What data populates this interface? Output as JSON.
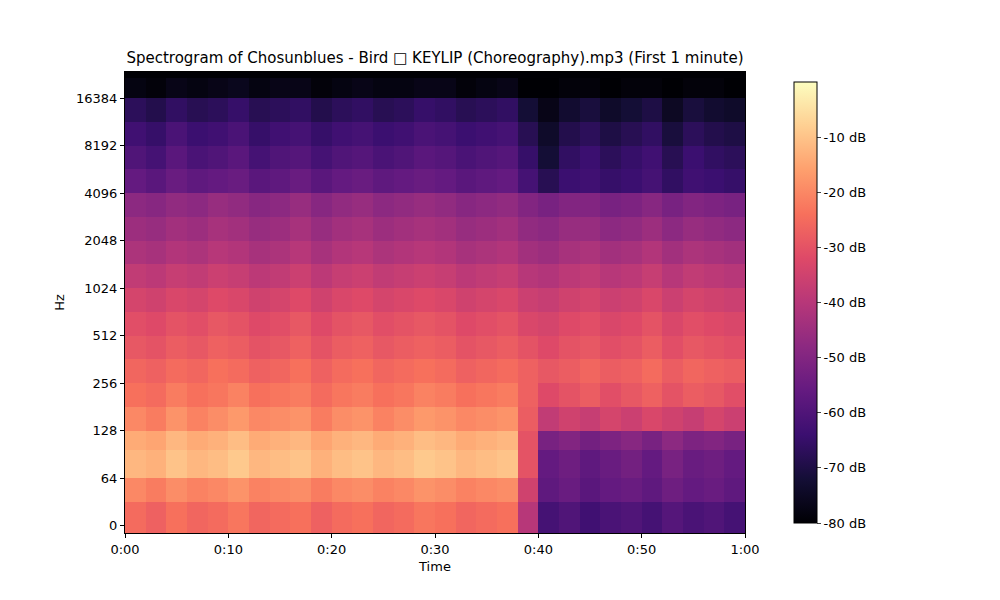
{
  "chart_data": {
    "type": "heatmap",
    "title": "Spectrogram of Chosunblues - Bird □ KEYLIP (Choreography).mp3 (First 1 minute)",
    "xlabel": "Time",
    "ylabel": "Hz",
    "log": "y",
    "grid": false,
    "xlim": [
      0,
      60
    ],
    "xticks": [
      {
        "value": 0,
        "label": "0:00"
      },
      {
        "value": 10,
        "label": "0:10"
      },
      {
        "value": 20,
        "label": "0:20"
      },
      {
        "value": 30,
        "label": "0:30"
      },
      {
        "value": 40,
        "label": "0:40"
      },
      {
        "value": 50,
        "label": "0:50"
      },
      {
        "value": 60,
        "label": "1:00"
      }
    ],
    "ylim": [
      -10,
      24000
    ],
    "yticks": [
      0,
      64,
      128,
      256,
      512,
      1024,
      2048,
      4096,
      8192,
      16384
    ],
    "x": [
      0,
      2,
      4,
      6,
      8,
      10,
      12,
      14,
      16,
      18,
      20,
      22,
      24,
      26,
      28,
      30,
      32,
      34,
      36,
      38,
      40,
      42,
      44,
      46,
      48,
      50,
      52,
      54,
      56,
      58,
      60
    ],
    "y": [
      -10,
      32,
      64,
      96,
      128,
      181,
      256,
      362,
      512,
      724,
      1024,
      1448,
      2048,
      2896,
      4096,
      5793,
      8192,
      11585,
      16384,
      22050,
      24000
    ],
    "cells": [
      [
        -25,
        -27,
        -24,
        -26,
        -25,
        -23,
        -26,
        -25,
        -24,
        -27,
        -25,
        -24,
        -26,
        -25,
        -23,
        -24,
        -26,
        -25,
        -24,
        -40,
        -62,
        -60,
        -63,
        -61,
        -60,
        -62,
        -59,
        -61,
        -60,
        -62
      ],
      [
        -20,
        -22,
        -19,
        -21,
        -20,
        -18,
        -21,
        -20,
        -19,
        -22,
        -20,
        -19,
        -21,
        -20,
        -18,
        -19,
        -21,
        -20,
        -19,
        -35,
        -57,
        -55,
        -58,
        -56,
        -55,
        -57,
        -54,
        -56,
        -55,
        -57
      ],
      [
        -12,
        -13,
        -10,
        -12,
        -11,
        -9,
        -12,
        -11,
        -10,
        -13,
        -11,
        -10,
        -12,
        -11,
        -9,
        -10,
        -12,
        -11,
        -10,
        -30,
        -56,
        -54,
        -57,
        -55,
        -53,
        -56,
        -52,
        -55,
        -54,
        -56
      ],
      [
        -14,
        -15,
        -12,
        -14,
        -13,
        -11,
        -14,
        -13,
        -12,
        -15,
        -13,
        -12,
        -14,
        -13,
        -11,
        -12,
        -14,
        -13,
        -12,
        -30,
        -52,
        -50,
        -53,
        -51,
        -49,
        -52,
        -48,
        -51,
        -50,
        -52
      ],
      [
        -20,
        -22,
        -18,
        -21,
        -19,
        -17,
        -20,
        -19,
        -18,
        -22,
        -19,
        -18,
        -21,
        -19,
        -17,
        -18,
        -20,
        -19,
        -18,
        -28,
        -38,
        -35,
        -37,
        -34,
        -36,
        -33,
        -35,
        -37,
        -34,
        -36
      ],
      [
        -24,
        -25,
        -22,
        -24,
        -23,
        -21,
        -24,
        -23,
        -22,
        -25,
        -23,
        -22,
        -24,
        -23,
        -21,
        -22,
        -24,
        -23,
        -22,
        -27,
        -32,
        -30,
        -28,
        -31,
        -29,
        -27,
        -30,
        -28,
        -29,
        -31
      ],
      [
        -26,
        -27,
        -25,
        -26,
        -24,
        -25,
        -27,
        -26,
        -24,
        -27,
        -25,
        -24,
        -26,
        -25,
        -24,
        -25,
        -27,
        -26,
        -25,
        -27,
        -29,
        -28,
        -26,
        -28,
        -27,
        -25,
        -28,
        -26,
        -27,
        -28
      ],
      [
        -29,
        -30,
        -28,
        -29,
        -27,
        -28,
        -30,
        -29,
        -27,
        -30,
        -28,
        -27,
        -29,
        -28,
        -27,
        -28,
        -30,
        -29,
        -28,
        -30,
        -32,
        -30,
        -29,
        -31,
        -30,
        -28,
        -31,
        -29,
        -30,
        -31
      ],
      [
        -31,
        -32,
        -30,
        -31,
        -29,
        -30,
        -32,
        -31,
        -29,
        -32,
        -30,
        -29,
        -31,
        -30,
        -29,
        -30,
        -32,
        -31,
        -30,
        -33,
        -34,
        -32,
        -31,
        -33,
        -32,
        -30,
        -33,
        -31,
        -32,
        -33
      ],
      [
        -34,
        -35,
        -33,
        -34,
        -32,
        -33,
        -35,
        -34,
        -32,
        -35,
        -33,
        -32,
        -34,
        -33,
        -32,
        -33,
        -35,
        -34,
        -33,
        -36,
        -37,
        -35,
        -34,
        -36,
        -35,
        -33,
        -36,
        -34,
        -35,
        -36
      ],
      [
        -38,
        -39,
        -37,
        -38,
        -36,
        -37,
        -39,
        -38,
        -36,
        -39,
        -37,
        -36,
        -38,
        -37,
        -36,
        -37,
        -39,
        -38,
        -37,
        -40,
        -41,
        -39,
        -38,
        -40,
        -39,
        -37,
        -40,
        -38,
        -39,
        -40
      ],
      [
        -42,
        -43,
        -41,
        -42,
        -40,
        -41,
        -43,
        -42,
        -40,
        -43,
        -41,
        -40,
        -42,
        -41,
        -40,
        -41,
        -43,
        -42,
        -41,
        -44,
        -45,
        -43,
        -42,
        -44,
        -43,
        -41,
        -44,
        -42,
        -43,
        -44
      ],
      [
        -45,
        -46,
        -44,
        -45,
        -43,
        -44,
        -46,
        -45,
        -43,
        -46,
        -44,
        -43,
        -45,
        -44,
        -43,
        -44,
        -46,
        -45,
        -44,
        -47,
        -48,
        -46,
        -46,
        -48,
        -47,
        -45,
        -48,
        -46,
        -47,
        -48
      ],
      [
        -48,
        -49,
        -47,
        -48,
        -46,
        -47,
        -49,
        -48,
        -46,
        -49,
        -47,
        -46,
        -48,
        -47,
        -46,
        -47,
        -49,
        -48,
        -47,
        -50,
        -52,
        -50,
        -50,
        -52,
        -51,
        -49,
        -52,
        -50,
        -51,
        -52
      ],
      [
        -56,
        -58,
        -55,
        -57,
        -56,
        -55,
        -58,
        -57,
        -55,
        -58,
        -56,
        -55,
        -57,
        -56,
        -55,
        -56,
        -58,
        -57,
        -56,
        -62,
        -68,
        -64,
        -63,
        -65,
        -64,
        -62,
        -66,
        -63,
        -64,
        -65
      ],
      [
        -60,
        -62,
        -58,
        -61,
        -60,
        -58,
        -62,
        -60,
        -59,
        -62,
        -60,
        -59,
        -61,
        -60,
        -58,
        -59,
        -61,
        -60,
        -59,
        -65,
        -72,
        -66,
        -64,
        -67,
        -65,
        -63,
        -68,
        -64,
        -66,
        -67
      ],
      [
        -63,
        -65,
        -61,
        -64,
        -63,
        -61,
        -65,
        -63,
        -62,
        -65,
        -63,
        -62,
        -64,
        -63,
        -61,
        -62,
        -64,
        -63,
        -62,
        -68,
        -74,
        -69,
        -67,
        -70,
        -68,
        -66,
        -71,
        -67,
        -69,
        -70
      ],
      [
        -67,
        -69,
        -66,
        -68,
        -67,
        -65,
        -68,
        -67,
        -66,
        -69,
        -67,
        -66,
        -68,
        -67,
        -65,
        -66,
        -68,
        -67,
        -66,
        -72,
        -77,
        -73,
        -71,
        -74,
        -72,
        -70,
        -75,
        -71,
        -73,
        -74
      ],
      [
        -78,
        -79,
        -77,
        -78,
        -77,
        -76,
        -78,
        -77,
        -77,
        -79,
        -78,
        -77,
        -78,
        -78,
        -77,
        -77,
        -79,
        -78,
        -77,
        -80,
        -80,
        -79,
        -79,
        -80,
        -79,
        -79,
        -80,
        -79,
        -79,
        -80
      ],
      [
        -80,
        -80,
        -80,
        -80,
        -80,
        -80,
        -80,
        -80,
        -80,
        -80,
        -80,
        -80,
        -80,
        -80,
        -80,
        -80,
        -80,
        -80,
        -80,
        -80,
        -80,
        -80,
        -80,
        -80,
        -80,
        -80,
        -80,
        -80,
        -80,
        -80
      ]
    ],
    "colorbar_range": [
      -80,
      0
    ],
    "colorbar_ticks": [
      {
        "value": -10,
        "label": "-10 dB"
      },
      {
        "value": -20,
        "label": "-20 dB"
      },
      {
        "value": -30,
        "label": "-30 dB"
      },
      {
        "value": -40,
        "label": "-40 dB"
      },
      {
        "value": -50,
        "label": "-50 dB"
      },
      {
        "value": -60,
        "label": "-60 dB"
      },
      {
        "value": -70,
        "label": "-70 dB"
      },
      {
        "value": -80,
        "label": "-80 dB"
      }
    ]
  }
}
